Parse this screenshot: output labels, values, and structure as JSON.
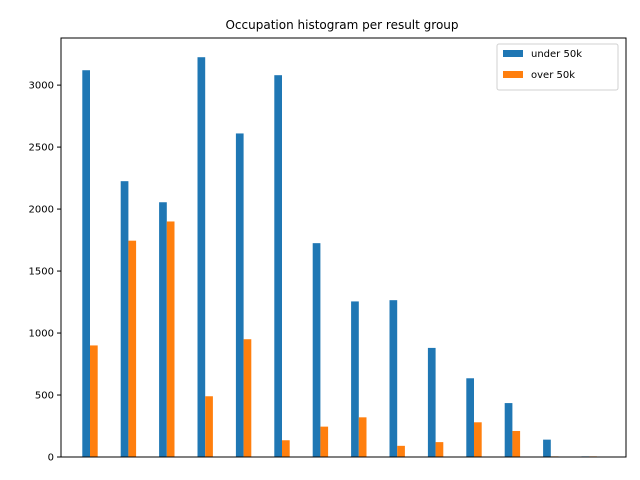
{
  "chart_data": {
    "type": "bar",
    "title": "Occupation histogram per result group",
    "xlabel": "",
    "ylabel": "",
    "ylim": [
      0,
      3380
    ],
    "yticks": [
      0,
      500,
      1000,
      1500,
      2000,
      2500,
      3000
    ],
    "categories": [
      "",
      "",
      "",
      "",
      "",
      "",
      "",
      "",
      "",
      "",
      "",
      "",
      "",
      ""
    ],
    "series": [
      {
        "name": "under 50k",
        "color": "#1f77b4",
        "values": [
          3120,
          2225,
          2055,
          3225,
          2610,
          3080,
          1725,
          1255,
          1265,
          880,
          635,
          435,
          140,
          5
        ]
      },
      {
        "name": "over 50k",
        "color": "#ff7f0e",
        "values": [
          900,
          1745,
          1900,
          490,
          950,
          135,
          245,
          320,
          90,
          120,
          280,
          210,
          5,
          5
        ]
      }
    ],
    "legend": {
      "position": "top-right"
    },
    "grid": false
  }
}
